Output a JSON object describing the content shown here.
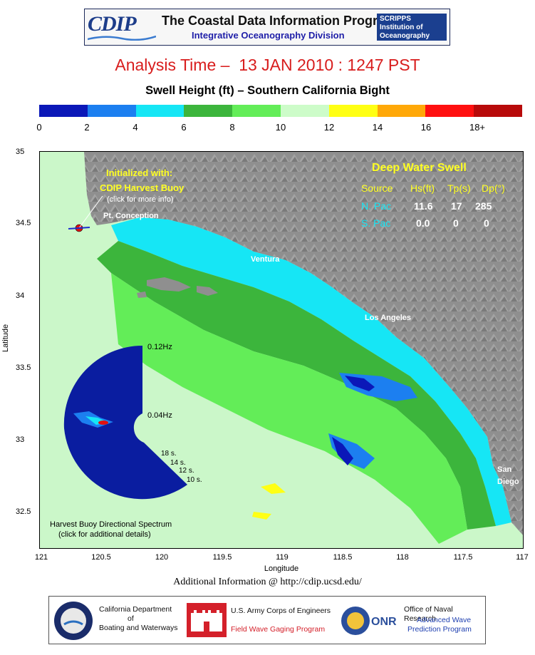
{
  "header": {
    "logo_text": "CDIP",
    "title": "The Coastal Data Information Program",
    "subtitle": "Integrative Oceanography Division",
    "scripps_lines": [
      "SCRIPPS",
      "Institution of",
      "Oceanography"
    ]
  },
  "analysis_time": "Analysis Time –  13 JAN 2010 : 1247 PST",
  "map_title": "Swell Height (ft) – Southern California Bight",
  "colorbar": {
    "colors": [
      "#0b18b8",
      "#1c7ff0",
      "#16e6f5",
      "#3cb53c",
      "#63ed58",
      "#cdfcc9",
      "#ffff14",
      "#ffa808",
      "#ff1010",
      "#b80a0a"
    ],
    "labels": [
      "0",
      "2",
      "4",
      "6",
      "8",
      "10",
      "12",
      "14",
      "16",
      "18+"
    ]
  },
  "axes": {
    "xlabel": "Longitude",
    "ylabel": "Latitude",
    "x_ticks": [
      "121",
      "120.5",
      "120",
      "119.5",
      "119",
      "118.5",
      "118",
      "117.5",
      "117"
    ],
    "y_ticks": [
      "35",
      "34.5",
      "34",
      "33.5",
      "33",
      "32.5"
    ],
    "lon_range": [
      121,
      117
    ],
    "lat_range": [
      32.35,
      35
    ]
  },
  "places": {
    "pt_conception": "Pt. Conception",
    "ventura": "Ventura",
    "los_angeles": "Los Angeles",
    "san": "San",
    "diego": "Diego"
  },
  "initialized": {
    "line1": "Initialized with:",
    "line2": "CDIP Harvest Buoy",
    "line3": "(click for more info)"
  },
  "deep_water_swell": {
    "title": "Deep Water Swell",
    "headers": [
      "Source",
      "Hs(ft)",
      "Tp(s)",
      "Dp(°)"
    ],
    "rows": [
      {
        "source": "N. Pac",
        "hs": "11.6",
        "tp": "17",
        "dp": "285"
      },
      {
        "source": "S. Pac",
        "hs": "0.0",
        "tp": "0",
        "dp": "0"
      }
    ]
  },
  "spectrum": {
    "freq_outer": "0.12Hz",
    "freq_inner": "0.04Hz",
    "period_labels": [
      "18 s.",
      "14 s.",
      "12 s.",
      "10 s."
    ],
    "caption1": "Harvest Buoy Directional Spectrum",
    "caption2": "(click for additional details)"
  },
  "additional_info": "Additional Information @ http://cdip.ucsd.edu/",
  "footer": {
    "cdbw": [
      "California Department",
      "of",
      "Boating and Waterways"
    ],
    "usace": [
      "U.S. Army Corps of Engineers"
    ],
    "usace_red": "Field Wave Gaging Program",
    "onr": [
      "Office of Naval Research"
    ],
    "onr_blue": [
      "Advanced Wave",
      "Prediction Program"
    ]
  }
}
